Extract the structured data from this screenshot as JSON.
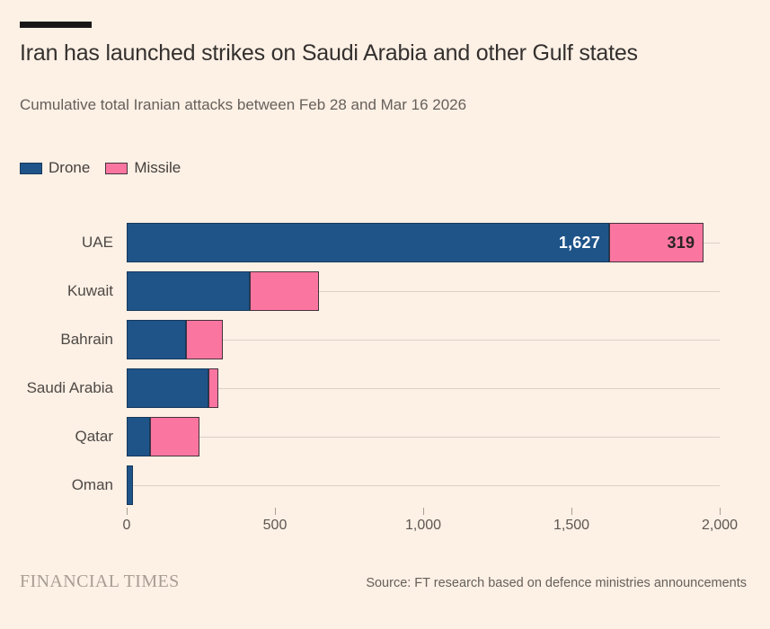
{
  "page": {
    "background": "#fdf0e5",
    "accent_bar_color": "#1a1817"
  },
  "header": {
    "title": "Iran has launched strikes on Saudi Arabia and other Gulf states",
    "subtitle": "Cumulative total Iranian attacks between Feb 28 and Mar 16 2026"
  },
  "legend": {
    "items": [
      {
        "label": "Drone",
        "color": "#1f5489"
      },
      {
        "label": "Missile",
        "color": "#fa76a0"
      }
    ]
  },
  "chart_data": {
    "type": "bar",
    "orientation": "horizontal",
    "stacked": true,
    "title": "Iran has launched strikes on Saudi Arabia and other Gulf states",
    "subtitle": "Cumulative total Iranian attacks between Feb 28 and Mar 16 2026",
    "categories": [
      "UAE",
      "Kuwait",
      "Bahrain",
      "Saudi Arabia",
      "Qatar",
      "Oman"
    ],
    "series": [
      {
        "name": "Drone",
        "color": "#1f5489",
        "border_color": "#16395c",
        "label_color": "#ffffff",
        "values": [
          1627,
          415,
          200,
          275,
          80,
          20
        ],
        "data_labels": [
          "1,627",
          "",
          "",
          "",
          "",
          ""
        ]
      },
      {
        "name": "Missile",
        "color": "#fa76a0",
        "border_color": "#47323d",
        "label_color": "#2b2226",
        "values": [
          319,
          235,
          125,
          35,
          165,
          0
        ],
        "data_labels": [
          "319",
          "",
          "",
          "",
          "",
          ""
        ]
      }
    ],
    "xlim": [
      0,
      2000
    ],
    "x_ticks": [
      {
        "value": 0,
        "label": "0"
      },
      {
        "value": 500,
        "label": "500"
      },
      {
        "value": 1000,
        "label": "1,000"
      },
      {
        "value": 1500,
        "label": "1,500"
      },
      {
        "value": 2000,
        "label": "2,000"
      }
    ],
    "grid": "horizontal line through centre of each bar row",
    "legend_position": "top-left"
  },
  "footer": {
    "brand": "FINANCIAL TIMES",
    "source": "Source: FT research based on defence ministries announcements"
  }
}
